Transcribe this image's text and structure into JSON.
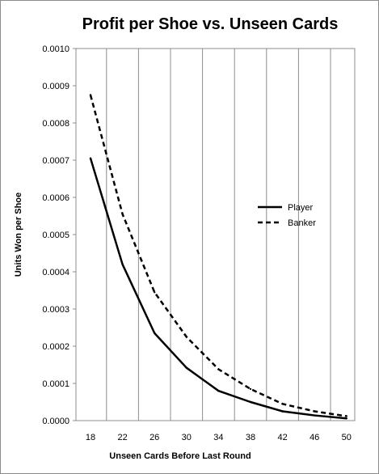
{
  "chart_data": {
    "type": "line",
    "title": "Profit per Shoe vs. Unseen Cards",
    "xlabel": "Unseen Cards Before Last Round",
    "ylabel": "Units Won per Shoe",
    "x": [
      18,
      22,
      26,
      30,
      34,
      38,
      42,
      46,
      50
    ],
    "xticks": [
      "18",
      "22",
      "26",
      "30",
      "34",
      "38",
      "42",
      "46",
      "50"
    ],
    "ylim": [
      0,
      0.001
    ],
    "yticks": [
      "0.0000",
      "0.0001",
      "0.0002",
      "0.0003",
      "0.0004",
      "0.0005",
      "0.0006",
      "0.0007",
      "0.0008",
      "0.0009",
      "0.0010"
    ],
    "grid": "vertical",
    "legend_position": "right",
    "series": [
      {
        "name": "Player",
        "style": "solid",
        "color": "#000000",
        "values": [
          0.000705,
          0.00042,
          0.000235,
          0.000142,
          8e-05,
          5e-05,
          2.5e-05,
          1.4e-05,
          6e-06
        ]
      },
      {
        "name": "Banker",
        "style": "dashed",
        "color": "#000000",
        "values": [
          0.000875,
          0.000555,
          0.000345,
          0.000225,
          0.000138,
          8.5e-05,
          4.5e-05,
          2.5e-05,
          1.2e-05
        ]
      }
    ]
  }
}
